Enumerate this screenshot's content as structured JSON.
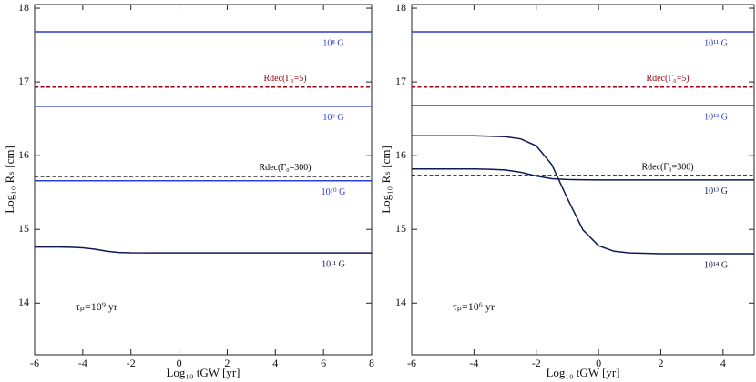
{
  "chart_data": [
    {
      "type": "line",
      "x_label": "Log₁₀ tGW [yr]",
      "y_label": "Log₁₀ Rₛ [cm]",
      "annotation": "τₚ=10⁹ yr",
      "xlim": [
        -6,
        8
      ],
      "xticks": [
        -6,
        -4,
        -2,
        0,
        2,
        4,
        6,
        8
      ],
      "ylim": [
        13.3,
        18.05
      ],
      "yticks": [
        14,
        15,
        16,
        17,
        18
      ],
      "series": [
        {
          "name": "10⁸ G",
          "color": "#2a3fd0",
          "dashed": false,
          "x": [
            -6,
            8
          ],
          "values": [
            17.68,
            17.68
          ]
        },
        {
          "name": "Rdec(Γ₀=5)",
          "color": "#a00010",
          "dashed": true,
          "x": [
            -6,
            8
          ],
          "values": [
            16.93,
            16.93
          ]
        },
        {
          "name": "10⁹ G",
          "color": "#2a3fd0",
          "dashed": false,
          "x": [
            -6,
            8
          ],
          "values": [
            16.67,
            16.67
          ]
        },
        {
          "name": "Rdec(Γ₀=300)",
          "color": "#000000",
          "dashed": true,
          "x": [
            -6,
            8
          ],
          "values": [
            15.72,
            15.72
          ]
        },
        {
          "name": "10¹⁰ G",
          "color": "#2a3fd0",
          "dashed": false,
          "x": [
            -6,
            8
          ],
          "values": [
            15.66,
            15.66
          ]
        },
        {
          "name": "10¹¹ G",
          "color": "#0d1a55",
          "dashed": false,
          "x": [
            -6,
            -5,
            -4.5,
            -4,
            -3.5,
            -3,
            -2.5,
            -2,
            -1,
            0,
            2,
            4,
            6,
            8
          ],
          "values": [
            14.76,
            14.76,
            14.758,
            14.75,
            14.731,
            14.704,
            14.687,
            14.682,
            14.68,
            14.68,
            14.68,
            14.68,
            14.68,
            14.68
          ]
        }
      ]
    },
    {
      "type": "line",
      "x_label": "Log₁₀ tGW [yr]",
      "y_label": "Log₁₀ Rₛ [cm]",
      "annotation": "τₚ=10⁶ yr",
      "xlim": [
        -6,
        5
      ],
      "xticks": [
        -6,
        -4,
        -2,
        0,
        2,
        4
      ],
      "ylim": [
        13.3,
        18.05
      ],
      "yticks": [
        14,
        15,
        16,
        17,
        18
      ],
      "series": [
        {
          "name": "10¹¹ G",
          "color": "#2a3fd0",
          "dashed": false,
          "x": [
            -6,
            5
          ],
          "values": [
            17.68,
            17.68
          ]
        },
        {
          "name": "Rdec(Γ₀=5)",
          "color": "#a00010",
          "dashed": true,
          "x": [
            -6,
            5
          ],
          "values": [
            16.93,
            16.93
          ]
        },
        {
          "name": "10¹² G",
          "color": "#2a3fd0",
          "dashed": false,
          "x": [
            -6,
            5
          ],
          "values": [
            16.68,
            16.68
          ]
        },
        {
          "name": "Rdec(Γ₀=300)",
          "color": "#000000",
          "dashed": true,
          "x": [
            -6,
            5
          ],
          "values": [
            15.73,
            15.73
          ]
        },
        {
          "name": "10¹³ G",
          "color": "#0d1a55",
          "dashed": false,
          "x": [
            -6,
            -4,
            -3.5,
            -3,
            -2.5,
            -2,
            -1.5,
            -1,
            0,
            2,
            4,
            5
          ],
          "values": [
            15.82,
            15.82,
            15.816,
            15.806,
            15.775,
            15.724,
            15.688,
            15.676,
            15.67,
            15.67,
            15.67,
            15.67
          ]
        },
        {
          "name": "10¹⁴ G",
          "color": "#0d1a55",
          "dashed": false,
          "x": [
            -6,
            -4,
            -3,
            -2.5,
            -2,
            -1.5,
            -1,
            -0.5,
            0,
            0.5,
            1,
            2,
            4,
            5
          ],
          "values": [
            16.27,
            16.27,
            16.258,
            16.228,
            16.134,
            15.878,
            15.42,
            14.993,
            14.778,
            14.703,
            14.68,
            14.67,
            14.67,
            14.67
          ]
        }
      ]
    }
  ]
}
